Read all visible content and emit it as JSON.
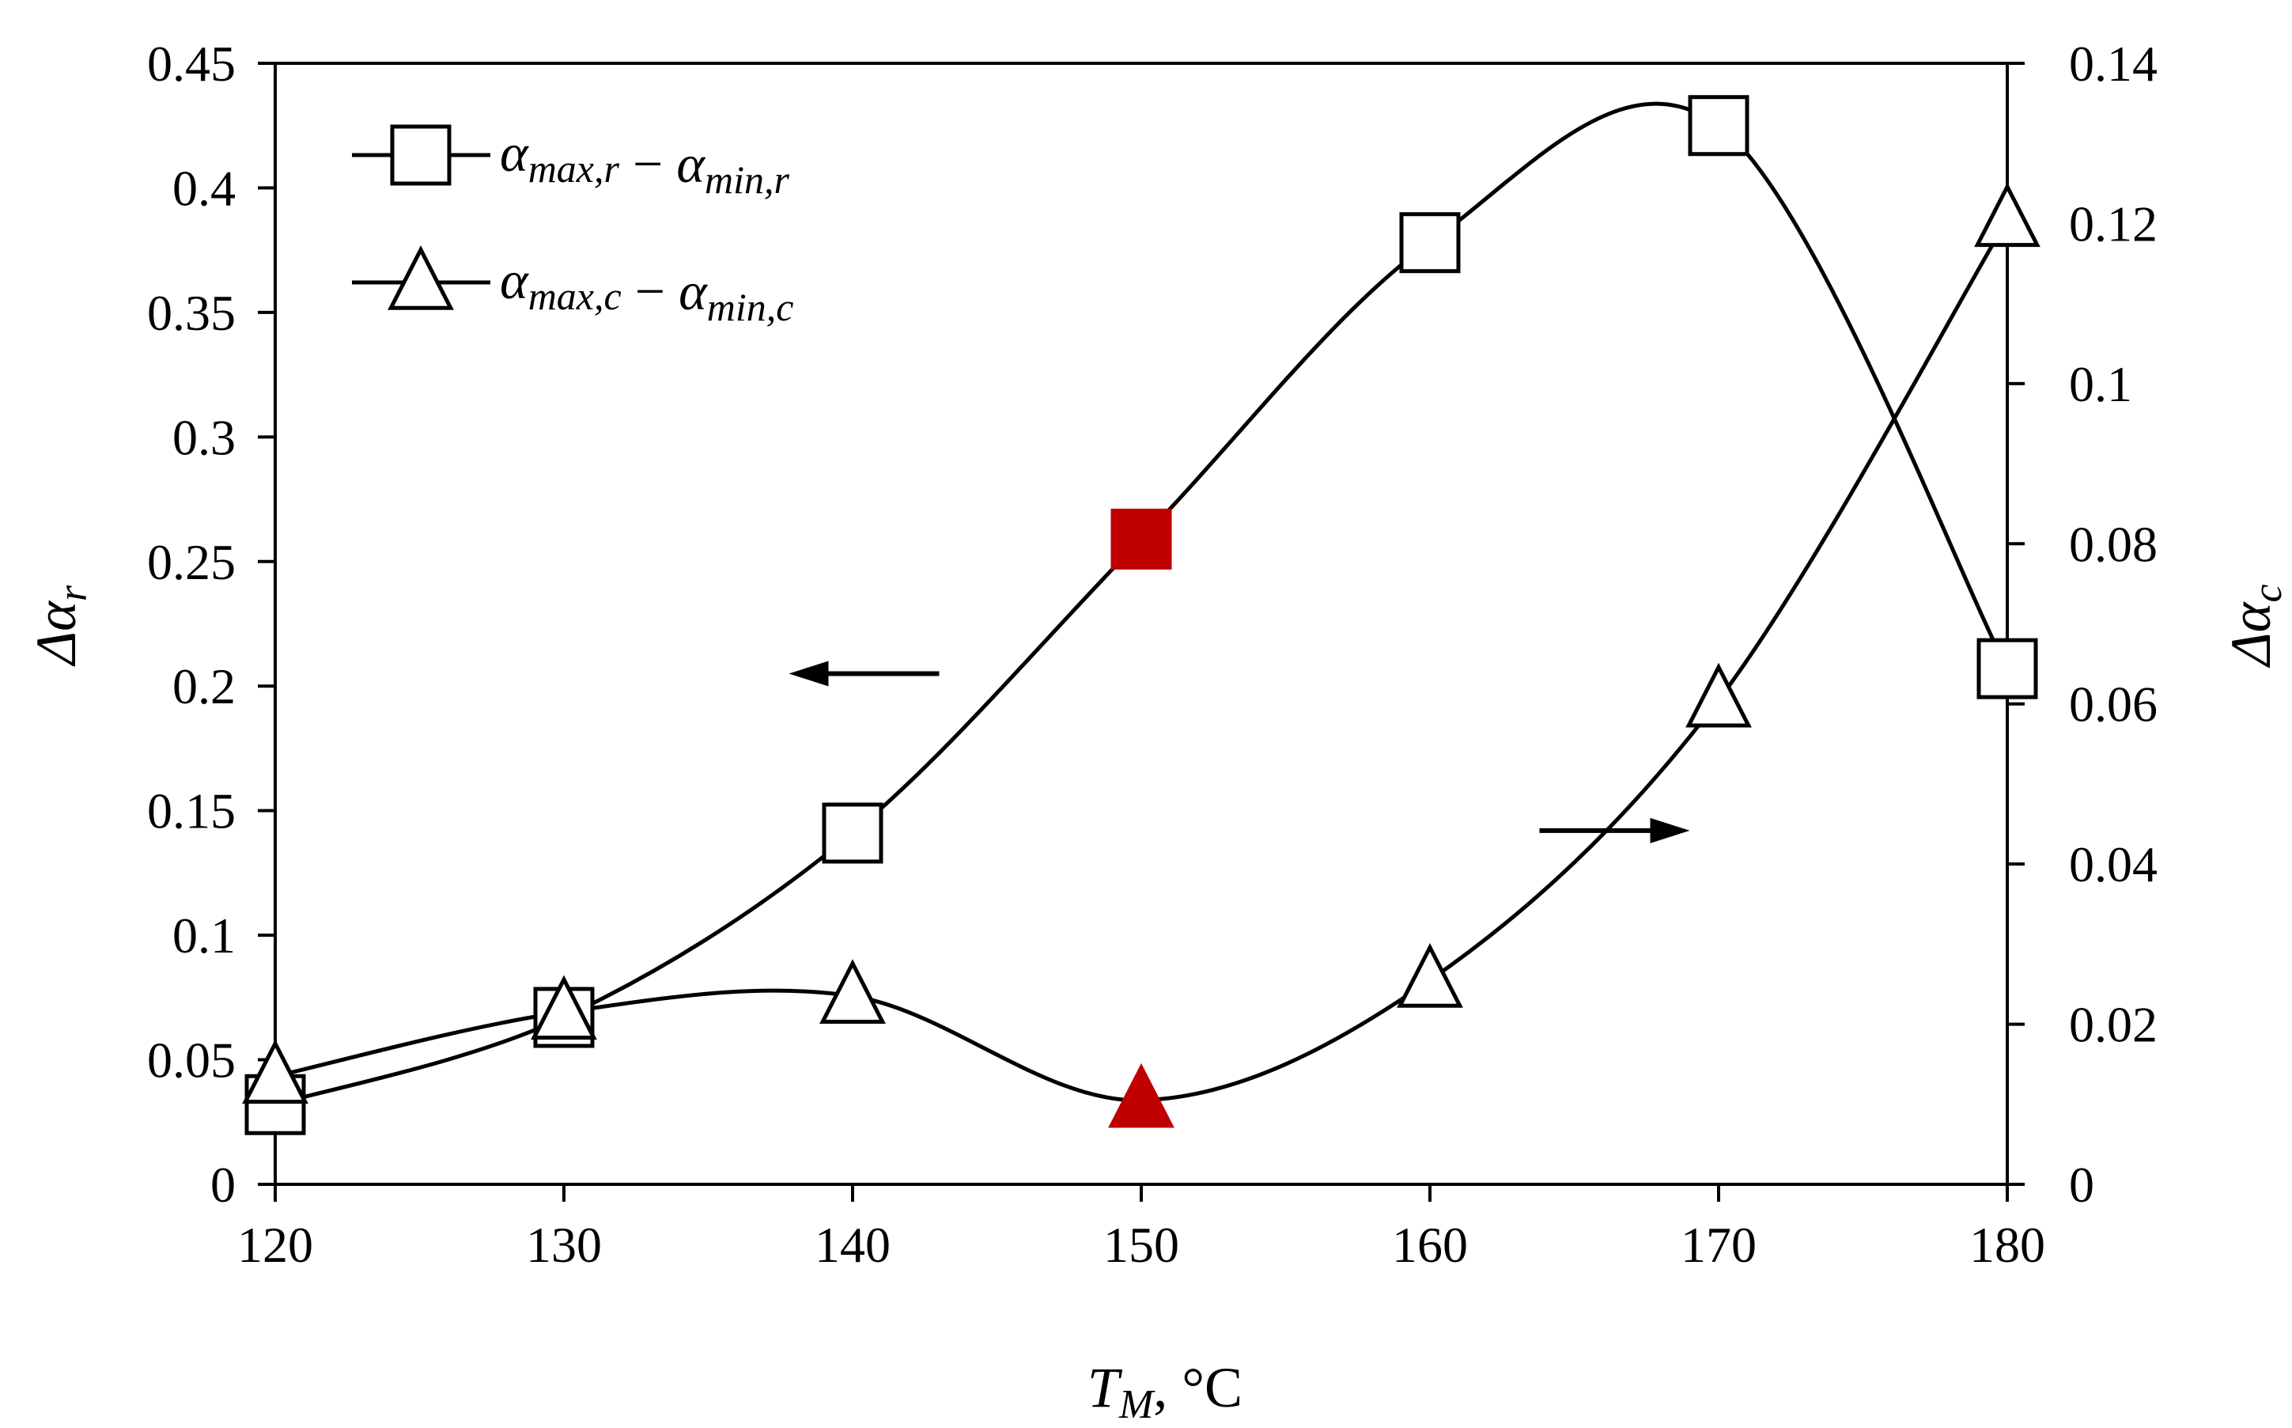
{
  "chart_data": {
    "type": "line",
    "title": "",
    "x": [
      120,
      130,
      140,
      150,
      160,
      170,
      180
    ],
    "xlim": [
      120,
      180
    ],
    "xticks": [
      "120",
      "130",
      "140",
      "150",
      "160",
      "170",
      "180"
    ],
    "xlabel": {
      "main": "T",
      "sub": "M",
      "suffix": ", °C"
    },
    "ylabel_left": {
      "main": "Δα",
      "sub": "r"
    },
    "ylabel_right": {
      "main": "Δα",
      "sub": "c"
    },
    "ylim_left": [
      0,
      0.45
    ],
    "ylim_right": [
      0,
      0.14
    ],
    "yticks_left": [
      "0",
      "0.05",
      "0.1",
      "0.15",
      "0.2",
      "0.25",
      "0.3",
      "0.35",
      "0.4",
      "0.45"
    ],
    "yticks_right": [
      "0",
      "0.02",
      "0.04",
      "0.06",
      "0.08",
      "0.1",
      "0.12",
      "0.14"
    ],
    "grid": false,
    "legend_position": "top-left",
    "series": [
      {
        "name": "α_max,r − α_min,r",
        "legend": {
          "a1": "α",
          "s1": "max,r",
          "op": " − ",
          "a2": "α",
          "s2": "min,r"
        },
        "axis": "left",
        "marker": "square",
        "values": [
          0.032,
          0.067,
          0.141,
          0.259,
          0.378,
          0.425,
          0.207
        ],
        "highlight_index": 3
      },
      {
        "name": "α_max,c − α_min,c",
        "legend": {
          "a1": "α",
          "s1": "max,c",
          "op": " − ",
          "a2": "α",
          "s2": "min,c"
        },
        "axis": "right",
        "marker": "triangle",
        "values": [
          0.0135,
          0.0215,
          0.0235,
          0.0105,
          0.0255,
          0.0605,
          0.1205
        ],
        "highlight_index": 3
      }
    ],
    "annotations": [
      {
        "type": "arrow",
        "direction": "left",
        "meaning": "series uses left axis",
        "at_x": 143,
        "at_y_left": 0.205
      },
      {
        "type": "arrow",
        "direction": "right",
        "meaning": "series uses right axis",
        "at_x": 169,
        "at_y_left": 0.142
      }
    ],
    "colors": {
      "line": "#000000",
      "marker_fill": "#ffffff",
      "highlight": "#c00000"
    }
  }
}
